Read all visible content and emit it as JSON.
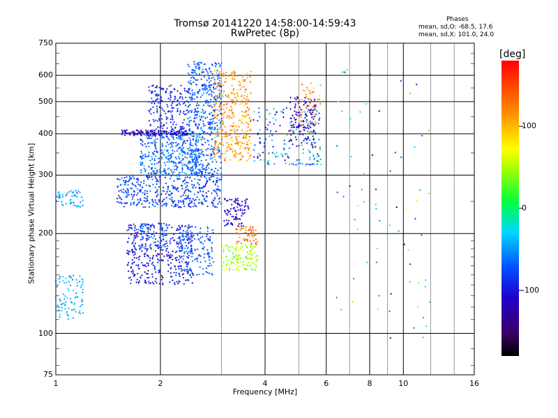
{
  "header": {
    "title_line1": "Tromsø 20141220 14:58:00-14:59:43",
    "title_line2": "RwPretec (8p)"
  },
  "phase_info": {
    "heading": "Phases",
    "line_o": "mean, sd,O: -68.5, 17.6",
    "line_x": "mean, sd,X: 101.0, 24.0"
  },
  "colorbar": {
    "unit": "[deg]",
    "min": -180,
    "max": 180,
    "ticks": [
      "100",
      "0",
      "-100"
    ],
    "tick_values": [
      100,
      0,
      -100
    ]
  },
  "chart_data": {
    "type": "scatter",
    "title": "Tromsø 20141220 14:58:00-14:59:43",
    "subtitle": "RwPretec (8p)",
    "xlabel": "Frequency [MHz]",
    "ylabel": "Stationary phase Virtual Height [km]",
    "x_scale": "log",
    "y_scale": "log",
    "xlim": [
      1,
      16
    ],
    "ylim": [
      75,
      750
    ],
    "x_ticks": [
      "1",
      "2",
      "4",
      "6",
      "8",
      "10",
      "16"
    ],
    "x_tick_values": [
      1,
      2,
      4,
      6,
      8,
      10,
      16
    ],
    "y_ticks": [
      "750",
      "600",
      "500",
      "400",
      "300",
      "200",
      "100",
      "75"
    ],
    "y_tick_values": [
      750,
      600,
      500,
      400,
      300,
      200,
      100,
      75
    ],
    "grid": true,
    "color_encodes": "phase [deg]",
    "clusters": [
      {
        "f": [
          1.6,
          2.5
        ],
        "h": [
          140,
          215
        ],
        "phase": -100,
        "spread": 20,
        "n": 380
      },
      {
        "f": [
          2.25,
          2.85
        ],
        "h": [
          150,
          210
        ],
        "phase": -70,
        "spread": 15,
        "n": 160
      },
      {
        "f": [
          1.75,
          2.1
        ],
        "h": [
          180,
          215
        ],
        "phase": -70,
        "spread": 15,
        "n": 70
      },
      {
        "f": [
          1.5,
          3.0
        ],
        "h": [
          240,
          300
        ],
        "phase": -80,
        "spread": 25,
        "n": 420
      },
      {
        "f": [
          1.75,
          2.6
        ],
        "h": [
          300,
          400
        ],
        "phase": -65,
        "spread": 25,
        "n": 380
      },
      {
        "f": [
          2.4,
          3.0
        ],
        "h": [
          300,
          660
        ],
        "phase": -70,
        "spread": 20,
        "n": 500
      },
      {
        "f": [
          1.85,
          2.4
        ],
        "h": [
          400,
          560
        ],
        "phase": -90,
        "spread": 20,
        "n": 200
      },
      {
        "f": [
          1.55,
          2.4
        ],
        "h": [
          395,
          410
        ],
        "phase": -115,
        "spread": 10,
        "n": 130
      },
      {
        "f": [
          2.85,
          3.65
        ],
        "h": [
          330,
          620
        ],
        "phase": 115,
        "spread": 30,
        "n": 330
      },
      {
        "f": [
          3.0,
          3.8
        ],
        "h": [
          155,
          185
        ],
        "phase": 45,
        "spread": 25,
        "n": 120
      },
      {
        "f": [
          3.3,
          3.8
        ],
        "h": [
          185,
          210
        ],
        "phase": 130,
        "spread": 25,
        "n": 60
      },
      {
        "f": [
          3.05,
          3.6
        ],
        "h": [
          210,
          255
        ],
        "phase": -110,
        "spread": 20,
        "n": 90
      },
      {
        "f": [
          3.7,
          5.8
        ],
        "h": [
          320,
          480
        ],
        "phase": -60,
        "spread": 60,
        "n": 180
      },
      {
        "f": [
          4.7,
          5.6
        ],
        "h": [
          360,
          520
        ],
        "phase": -115,
        "spread": 20,
        "n": 120
      },
      {
        "f": [
          5.0,
          5.8
        ],
        "h": [
          420,
          570
        ],
        "phase": 120,
        "spread": 25,
        "n": 50
      },
      {
        "f": [
          1.0,
          1.2
        ],
        "h": [
          110,
          150
        ],
        "phase": -40,
        "spread": 20,
        "n": 90
      },
      {
        "f": [
          1.0,
          1.2
        ],
        "h": [
          240,
          270
        ],
        "phase": -45,
        "spread": 15,
        "n": 50
      },
      {
        "f": [
          6.3,
          12.0
        ],
        "h": [
          95,
          660
        ],
        "phase": -30,
        "spread": 120,
        "n": 70
      }
    ]
  }
}
